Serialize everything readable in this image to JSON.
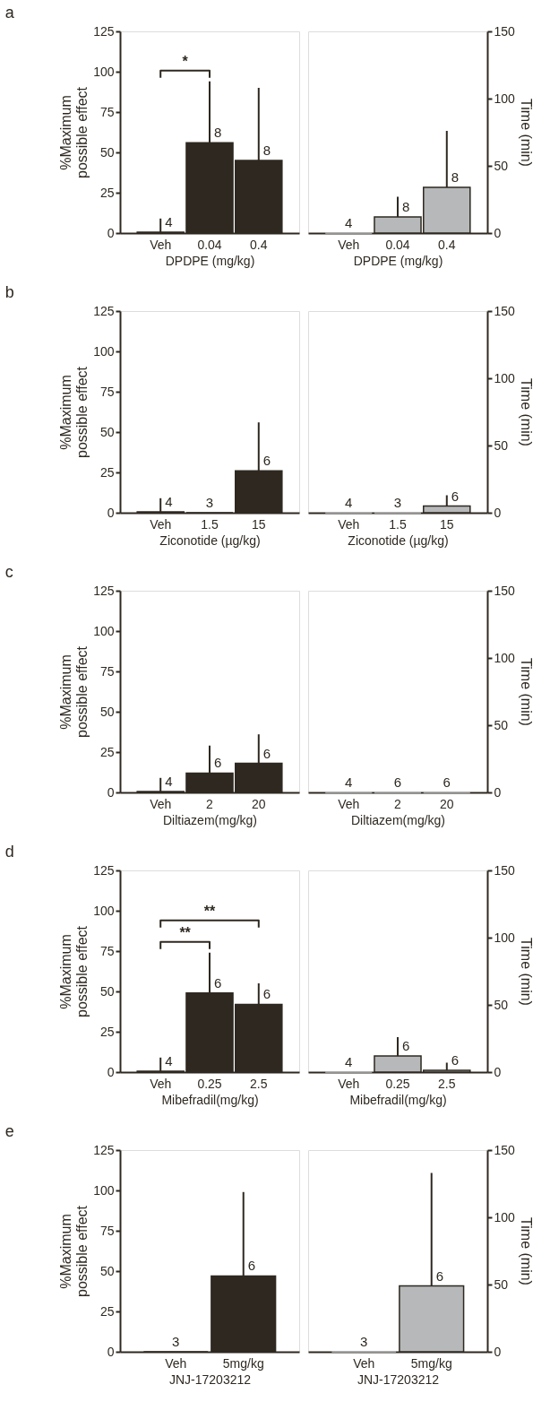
{
  "chart_data": [
    {
      "type": "bar",
      "title": "a",
      "categories": [
        "Veh",
        "0.04",
        "0.4"
      ],
      "xlabel": "DPDPE (mg/kg)",
      "ylabel": "%Maximum possible effect",
      "ylim": [
        0,
        125
      ],
      "yticks": [
        0,
        25,
        50,
        75,
        100,
        125
      ],
      "series": [
        {
          "color": "#2e2820",
          "values": [
            0.5,
            56,
            45
          ],
          "errors": [
            [
              0.5,
              9
            ],
            [
              56,
              94
            ],
            [
              45,
              90
            ]
          ]
        }
      ],
      "annotations": [
        {
          "text": "4",
          "x": "Veh",
          "y": 0.5
        },
        {
          "text": "8",
          "x": "0.04",
          "y": 56
        },
        {
          "text": "8",
          "x": "0.4",
          "y": 45
        },
        "*"
      ]
    },
    {
      "type": "bar",
      "categories": [
        "Veh",
        "0.04",
        "0.4"
      ],
      "xlabel": "DPDPE (mg/kg)",
      "ylabel": "Time (min)",
      "ylim": [
        0,
        150
      ],
      "yticks": [
        0,
        50,
        100,
        150
      ],
      "series": [
        {
          "color": "#b7b8ba",
          "values": [
            0,
            12,
            34
          ],
          "errors": [
            null,
            [
              12,
              27
            ],
            [
              34,
              76
            ]
          ]
        }
      ],
      "annotations": [
        {
          "text": "4",
          "x": "Veh",
          "y": 0
        },
        {
          "text": "8",
          "x": "0.04",
          "y": 12
        },
        {
          "text": "8",
          "x": "0.4",
          "y": 34
        }
      ]
    },
    {
      "type": "bar",
      "title": "b",
      "categories": [
        "Veh",
        "1.5",
        "15"
      ],
      "xlabel": "Ziconotide (µg/kg)",
      "ylabel": "%Maximum possible effect",
      "ylim": [
        0,
        125
      ],
      "yticks": [
        0,
        25,
        50,
        75,
        100,
        125
      ],
      "series": [
        {
          "color": "#2e2820",
          "values": [
            0.5,
            0,
            26
          ],
          "errors": [
            [
              0.5,
              9
            ],
            null,
            [
              26,
              56
            ]
          ]
        }
      ],
      "annotations": [
        {
          "text": "4",
          "x": "Veh",
          "y": 0.5
        },
        {
          "text": "3",
          "x": "1.5",
          "y": 0
        },
        {
          "text": "6",
          "x": "15",
          "y": 26
        }
      ]
    },
    {
      "type": "bar",
      "categories": [
        "Veh",
        "1.5",
        "15"
      ],
      "xlabel": "Ziconotide (µg/kg)",
      "ylabel": "Time (min)",
      "ylim": [
        0,
        150
      ],
      "yticks": [
        0,
        50,
        100,
        150
      ],
      "series": [
        {
          "color": "#b7b8ba",
          "values": [
            0,
            0,
            5
          ],
          "errors": [
            null,
            null,
            [
              5,
              13
            ]
          ]
        }
      ],
      "annotations": [
        {
          "text": "4",
          "x": "Veh",
          "y": 0
        },
        {
          "text": "3",
          "x": "1.5",
          "y": 0
        },
        {
          "text": "6",
          "x": "15",
          "y": 5
        }
      ]
    },
    {
      "type": "bar",
      "title": "c",
      "categories": [
        "Veh",
        "2",
        "20"
      ],
      "xlabel": "Diltiazem(mg/kg)",
      "ylabel": "%Maximum possible effect",
      "ylim": [
        0,
        125
      ],
      "yticks": [
        0,
        25,
        50,
        75,
        100,
        125
      ],
      "series": [
        {
          "color": "#2e2820",
          "values": [
            0.5,
            12,
            18
          ],
          "errors": [
            [
              0.5,
              9
            ],
            [
              12,
              29
            ],
            [
              18,
              36
            ]
          ]
        }
      ],
      "annotations": [
        {
          "text": "4",
          "x": "Veh",
          "y": 0.5
        },
        {
          "text": "6",
          "x": "2",
          "y": 12
        },
        {
          "text": "6",
          "x": "20",
          "y": 18
        }
      ]
    },
    {
      "type": "bar",
      "categories": [
        "Veh",
        "2",
        "20"
      ],
      "xlabel": "Diltiazem(mg/kg)",
      "ylabel": "Time (min)",
      "ylim": [
        0,
        150
      ],
      "yticks": [
        0,
        50,
        100,
        150
      ],
      "series": [
        {
          "color": "#b7b8ba",
          "values": [
            0,
            0,
            0
          ],
          "errors": [
            null,
            null,
            null
          ]
        }
      ],
      "annotations": [
        {
          "text": "4",
          "x": "Veh",
          "y": 0
        },
        {
          "text": "6",
          "x": "2",
          "y": 0
        },
        {
          "text": "6",
          "x": "20",
          "y": 0
        }
      ]
    },
    {
      "type": "bar",
      "title": "d",
      "categories": [
        "Veh",
        "0.25",
        "2.5"
      ],
      "xlabel": "Mibefradil(mg/kg)",
      "ylabel": "%Maximum possible effect",
      "ylim": [
        0,
        125
      ],
      "yticks": [
        0,
        25,
        50,
        75,
        100,
        125
      ],
      "series": [
        {
          "color": "#2e2820",
          "values": [
            0.5,
            49,
            42
          ],
          "errors": [
            [
              0.5,
              9
            ],
            [
              49,
              74
            ],
            [
              42,
              55
            ]
          ]
        }
      ],
      "annotations": [
        {
          "text": "4",
          "x": "Veh",
          "y": 0.5
        },
        {
          "text": "6",
          "x": "0.25",
          "y": 49
        },
        {
          "text": "6",
          "x": "2.5",
          "y": 42
        },
        "**",
        "**"
      ]
    },
    {
      "type": "bar",
      "categories": [
        "Veh",
        "0.25",
        "2.5"
      ],
      "xlabel": "Mibefradil(mg/kg)",
      "ylabel": "Time (min)",
      "ylim": [
        0,
        150
      ],
      "yticks": [
        0,
        50,
        100,
        150
      ],
      "series": [
        {
          "color": "#b7b8ba",
          "values": [
            0,
            12,
            1.3
          ],
          "errors": [
            null,
            [
              12,
              26
            ],
            [
              1.3,
              7
            ]
          ]
        }
      ],
      "annotations": [
        {
          "text": "4",
          "x": "Veh",
          "y": 0
        },
        {
          "text": "6",
          "x": "0.25",
          "y": 12
        },
        {
          "text": "6",
          "x": "2.5",
          "y": 1.3
        }
      ]
    },
    {
      "type": "bar",
      "title": "e",
      "categories": [
        "Veh",
        "5mg/kg"
      ],
      "xlabel": "JNJ-17203212",
      "ylabel": "%Maximum possible effect",
      "ylim": [
        0,
        125
      ],
      "yticks": [
        0,
        25,
        50,
        75,
        100,
        125
      ],
      "series": [
        {
          "color": "#2e2820",
          "values": [
            0,
            47
          ],
          "errors": [
            null,
            [
              47,
              99
            ]
          ]
        }
      ],
      "annotations": [
        {
          "text": "3",
          "x": "Veh",
          "y": 0
        },
        {
          "text": "6",
          "x": "5mg/kg",
          "y": 47
        }
      ]
    },
    {
      "type": "bar",
      "categories": [
        "Veh",
        "5mg/kg"
      ],
      "xlabel": "JNJ-17203212",
      "ylabel": "Time (min)",
      "ylim": [
        0,
        150
      ],
      "yticks": [
        0,
        50,
        100,
        150
      ],
      "series": [
        {
          "color": "#b7b8ba",
          "values": [
            0,
            49
          ],
          "errors": [
            null,
            [
              49,
              133
            ]
          ]
        }
      ],
      "annotations": [
        {
          "text": "3",
          "x": "Veh",
          "y": 0
        },
        {
          "text": "6",
          "x": "5mg/kg",
          "y": 49
        }
      ]
    }
  ]
}
